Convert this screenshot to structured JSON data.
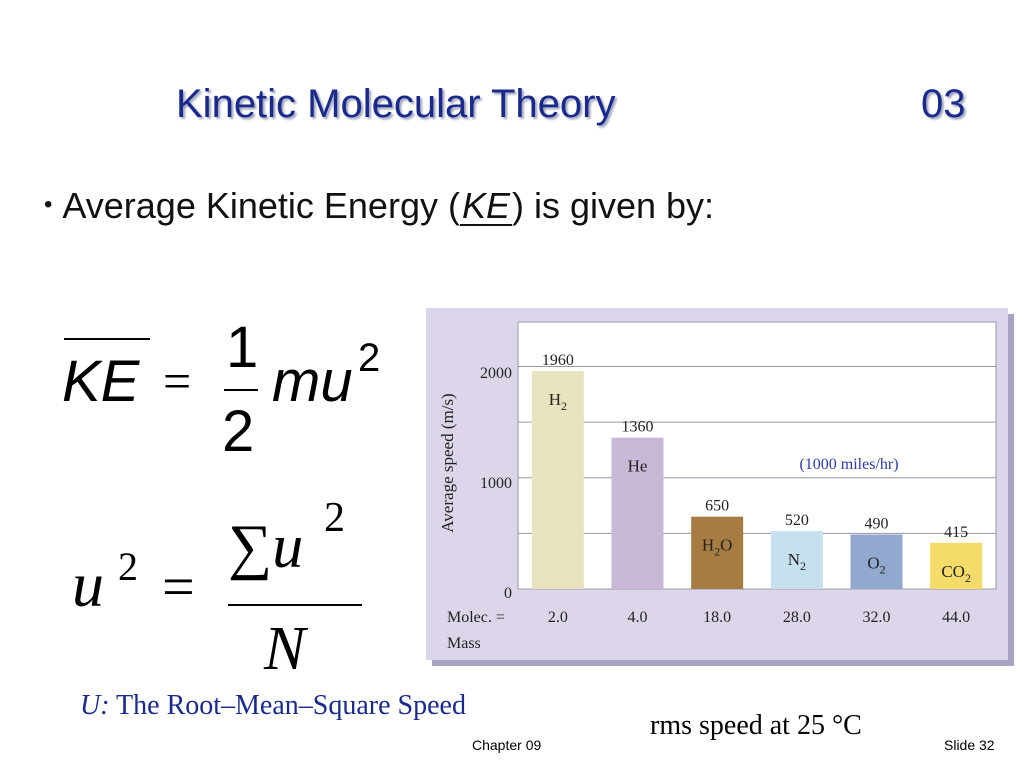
{
  "slide": {
    "title": "Kinetic Molecular Theory",
    "number": "03",
    "bullet": "•",
    "bullet_text_before": "Average Kinetic Energy (",
    "bullet_blank": "KE",
    "bullet_text_after": ") is given by:",
    "rms_symbol": "U:",
    "rms_label": " The Root–Mean–Square Speed",
    "rms_caption": "rms speed at 25 °C",
    "footer_chapter": "Chapter 09",
    "footer_slide": "Slide 32"
  },
  "equation1": {
    "lhs": "KE",
    "equals": "=",
    "numerator": "1",
    "denominator": "2",
    "rhs": "mu",
    "superscript": "2"
  },
  "equation2": {
    "lhs": "u",
    "lhs_sup": "2",
    "equals": "=",
    "sum_symbol": "∑",
    "numerator_var": "u",
    "numerator_sup": "2",
    "denominator": "N"
  },
  "chart_data": {
    "type": "bar",
    "ylabel": "Average speed (m/s)",
    "ylim": [
      0,
      2400
    ],
    "yticks": [
      0,
      1000,
      2000
    ],
    "grid_values": [
      500,
      1000,
      1500,
      2000
    ],
    "annotation": "(1000 miles/hr)",
    "row_label_line1": "Molec. =",
    "row_label_line2": "Mass",
    "bars": [
      {
        "value": 1960,
        "value_label": "1960",
        "formula": "H",
        "sub": "2",
        "mass": "2.0",
        "color": "#e8e3bf"
      },
      {
        "value": 1360,
        "value_label": "1360",
        "formula": "He",
        "sub": "",
        "mass": "4.0",
        "color": "#c8b8d8"
      },
      {
        "value": 650,
        "value_label": "650",
        "formula": "H",
        "sub": "2",
        "formula_tail": "O",
        "mass": "18.0",
        "color": "#a67c42"
      },
      {
        "value": 520,
        "value_label": "520",
        "formula": "N",
        "sub": "2",
        "mass": "28.0",
        "color": "#c6e0ee"
      },
      {
        "value": 490,
        "value_label": "490",
        "formula": "O",
        "sub": "2",
        "mass": "32.0",
        "color": "#92a9cf"
      },
      {
        "value": 415,
        "value_label": "415",
        "formula": "CO",
        "sub": "2",
        "mass": "44.0",
        "color": "#f5db6a"
      }
    ]
  },
  "colors": {
    "title": "#1a2a8c",
    "panel_bg": "#ddd6ea",
    "panel_shadow": "#a9a2c4",
    "plot_bg": "#ffffff",
    "annotation": "#2b3aa8"
  }
}
